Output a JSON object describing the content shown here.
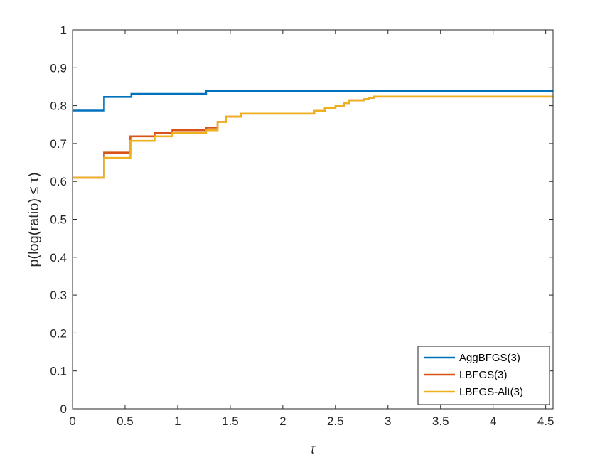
{
  "chart_data": {
    "type": "line",
    "ylabel": "p(log(ratio) ≤ τ)",
    "xlabel": "τ",
    "xlim": [
      0,
      4.57
    ],
    "ylim": [
      0,
      1
    ],
    "x_ticks": [
      "0",
      "0.5",
      "1",
      "1.5",
      "2",
      "2.5",
      "3",
      "3.5",
      "4",
      "4.5"
    ],
    "x_tick_values": [
      0,
      0.5,
      1,
      1.5,
      2,
      2.5,
      3,
      3.5,
      4,
      4.5
    ],
    "y_ticks": [
      "0",
      "0.1",
      "0.2",
      "0.3",
      "0.4",
      "0.5",
      "0.6",
      "0.7",
      "0.8",
      "0.9",
      "1"
    ],
    "y_tick_values": [
      0,
      0.1,
      0.2,
      0.3,
      0.4,
      0.5,
      0.6,
      0.7,
      0.8,
      0.9,
      1
    ],
    "grid": false,
    "legend_position": "bottom-right",
    "step": true,
    "series": [
      {
        "name": "AggBFGS(3)",
        "color": "#0072BD",
        "x": [
          0,
          0.3,
          0.56,
          1.27,
          4.57
        ],
        "y": [
          0.787,
          0.823,
          0.831,
          0.838,
          0.838
        ]
      },
      {
        "name": "LBFGS(3)",
        "color": "#D95319",
        "x": [
          0,
          0.3,
          0.55,
          0.78,
          0.95,
          1.27,
          1.38,
          1.46,
          1.6,
          2.3,
          2.4,
          2.5,
          2.58,
          2.63,
          2.77,
          2.82,
          2.87,
          4.57
        ],
        "y": [
          0.61,
          0.676,
          0.719,
          0.728,
          0.735,
          0.742,
          0.757,
          0.771,
          0.779,
          0.786,
          0.793,
          0.8,
          0.807,
          0.814,
          0.817,
          0.821,
          0.824,
          0.824
        ]
      },
      {
        "name": "LBFGS-Alt(3)",
        "color": "#EDB120",
        "x": [
          0,
          0.3,
          0.55,
          0.78,
          0.95,
          1.27,
          1.38,
          1.46,
          1.6,
          2.3,
          2.4,
          2.5,
          2.58,
          2.63,
          2.77,
          2.82,
          2.87,
          4.57
        ],
        "y": [
          0.61,
          0.662,
          0.707,
          0.719,
          0.728,
          0.735,
          0.757,
          0.771,
          0.779,
          0.786,
          0.793,
          0.8,
          0.807,
          0.814,
          0.817,
          0.821,
          0.824,
          0.824
        ]
      }
    ]
  }
}
